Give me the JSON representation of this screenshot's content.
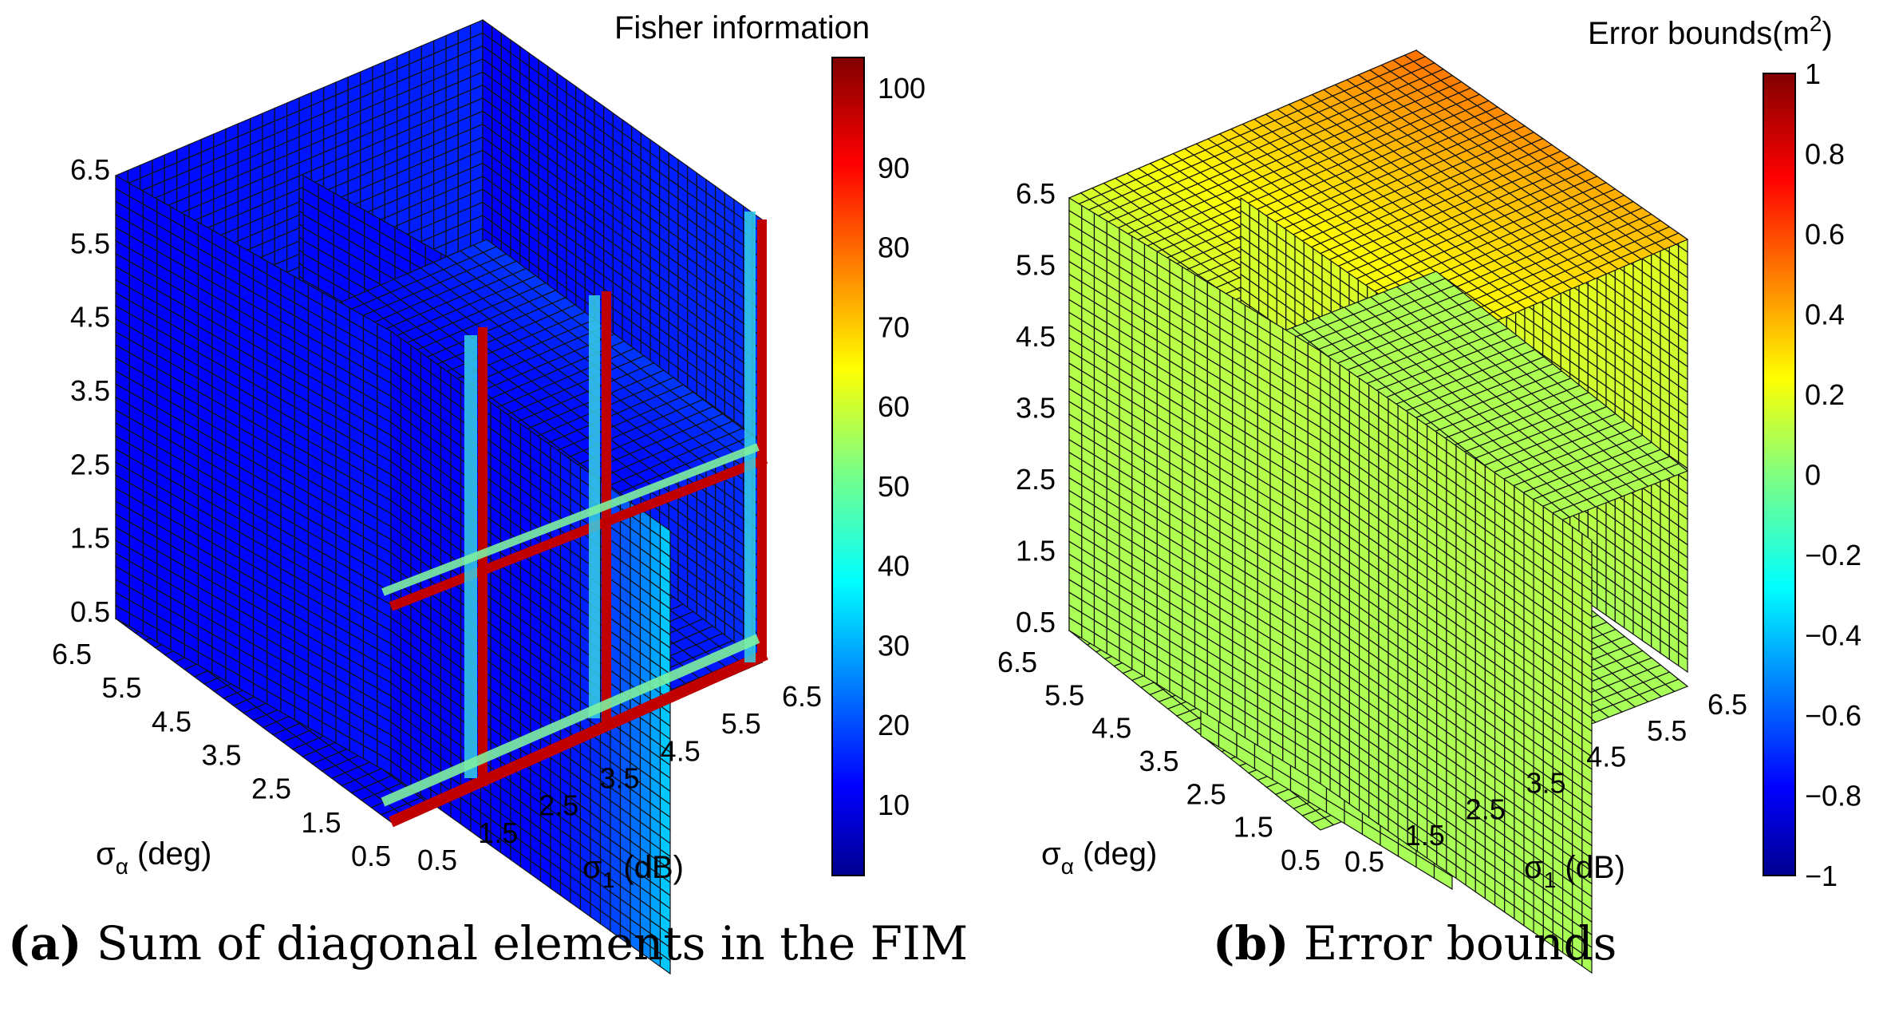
{
  "chart_data": [
    {
      "type": "heatmap",
      "subtype": "3d-slice-volume",
      "panel_label": "(a)",
      "caption": "Sum of diagonal elements in the FIM",
      "colorbar": {
        "title": "Fisher information",
        "colormap": "jet",
        "range": [
          1,
          104
        ],
        "ticks": [
          "10",
          "20",
          "30",
          "40",
          "50",
          "60",
          "70",
          "80",
          "90",
          "100"
        ]
      },
      "axes": {
        "vertical": {
          "ticks": [
            "0.5",
            "1.5",
            "2.5",
            "3.5",
            "4.5",
            "5.5",
            "6.5"
          ]
        },
        "left": {
          "label": "σ",
          "subscript": "α",
          "unit": " (deg)",
          "ticks": [
            "6.5",
            "5.5",
            "4.5",
            "3.5",
            "2.5",
            "1.5",
            "0.5"
          ]
        },
        "right": {
          "label": "σ",
          "subscript": "1",
          "unit": " (dB)",
          "ticks": [
            "0.5",
            "1.5",
            "2.5",
            "3.5",
            "4.5",
            "5.5",
            "6.5"
          ]
        }
      },
      "slices": "slice planes at axis midpoints; values low (≈5) everywhere except near σ1 = 0.5 dB where they rise to ≈100"
    },
    {
      "type": "heatmap",
      "subtype": "3d-slice-volume",
      "panel_label": "(b)",
      "caption": "Error bounds",
      "colorbar": {
        "title": "Error bounds(m",
        "title_sup": "2",
        "title_close": ")",
        "colormap": "jet",
        "range": [
          -1,
          1
        ],
        "ticks": [
          "−1",
          "−0.8",
          "−0.6",
          "−0.4",
          "−0.2",
          "0",
          "0.2",
          "0.4",
          "0.6",
          "0.8",
          "1"
        ]
      },
      "axes": {
        "vertical": {
          "ticks": [
            "0.5",
            "1.5",
            "2.5",
            "3.5",
            "4.5",
            "5.5",
            "6.5"
          ]
        },
        "left": {
          "label": "σ",
          "subscript": "α",
          "unit": " (deg)",
          "ticks": [
            "6.5",
            "5.5",
            "4.5",
            "3.5",
            "2.5",
            "1.5",
            "0.5"
          ]
        },
        "right": {
          "label": "σ",
          "subscript": "1",
          "unit": " (dB)",
          "ticks": [
            "0.5",
            "1.5",
            "2.5",
            "3.5",
            "4.5",
            "5.5",
            "6.5"
          ]
        }
      },
      "slices": "values ≈0.08 (green) at low σ, rising to ≈0.5 (orange) on the top face toward large σα and σ1"
    }
  ]
}
